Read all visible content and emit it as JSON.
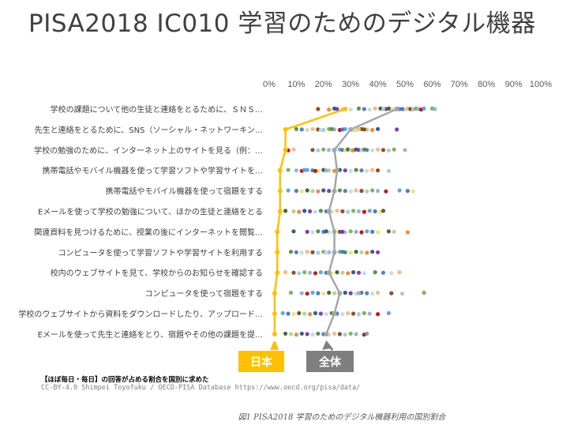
{
  "title": "PISA2018 IC010 学習のためのデジタル機器",
  "footnote": "【ほぼ毎日・毎日】の回答が占める割合を国別に求めた",
  "credit": "CC-BY-4.0 Shimpei Toyofuku / OECD-PISA Database https://www.oecd.org/pisa/data/",
  "caption": "図1 PISA2018 学習のためのデジタル機器利用の国別割合",
  "colors": {
    "japan": "#ffc000",
    "overall": "#a6a6a6",
    "callout_overall": "#7f7f7f"
  },
  "chart_data": {
    "type": "scatter",
    "xlim": [
      0,
      100
    ],
    "x_tick_labels": [
      "0%",
      "10%",
      "20%",
      "30%",
      "40%",
      "50%",
      "60%",
      "70%",
      "80%",
      "90%",
      "100%"
    ],
    "grid": false,
    "categories": [
      "学校の課題について他の生徒と連絡をとるために、ＳＮＳ…",
      "先生と連絡をとるために、SNS（ソーシャル・ネットワーキン…",
      "学校の勉強のために、インターネット上のサイトを見る（例：…",
      "携帯電話やモバイル機器を使って学習ソフトや学習サイトを…",
      "携帯電話やモバイル機器を使って宿題をする",
      "Eメールを使って学校の勉強について、ほかの生徒と連絡をとる",
      "関連資料を見つけるために、授業の後にインターネットを閲覧…",
      "コンピュータを使って学習ソフトや学習サイトを利用する",
      "校内のウェブサイトを見て、学校からのお知らせを確認する",
      "コンピュータを使って宿題をする",
      "学校のウェブサイトから資料をダウンロードしたり、アップロード…",
      "Eメールを使って先生と連絡をとり、宿題やその他の課題を提…"
    ],
    "series": [
      {
        "name": "日本",
        "values": [
          28,
          6,
          6,
          4,
          4,
          4,
          3,
          3,
          3,
          2,
          2,
          2
        ]
      },
      {
        "name": "全体",
        "values": [
          47,
          30,
          24,
          25,
          24,
          22,
          24,
          24,
          22,
          26,
          24,
          21
        ]
      }
    ],
    "countries": [
      [
        41,
        43,
        45,
        47,
        48,
        50,
        51,
        52,
        53,
        54,
        55,
        56,
        57,
        49,
        46,
        44,
        42,
        22,
        24,
        25,
        30,
        33,
        35,
        37,
        39,
        18,
        27,
        60,
        61
      ],
      [
        10,
        12,
        14,
        16,
        18,
        20,
        22,
        24,
        26,
        28,
        30,
        32,
        34,
        36,
        38,
        40,
        47,
        19,
        23,
        27,
        31,
        33,
        35
      ],
      [
        9,
        16,
        18,
        20,
        22,
        24,
        26,
        27,
        28,
        29,
        30,
        31,
        32,
        33,
        34,
        35,
        36,
        38,
        40,
        42,
        44,
        46,
        50,
        7
      ],
      [
        7,
        10,
        12,
        14,
        16,
        18,
        20,
        22,
        24,
        26,
        28,
        30,
        32,
        34,
        36,
        38,
        40,
        44,
        25,
        21,
        17,
        13
      ],
      [
        7,
        10,
        12,
        14,
        16,
        18,
        20,
        22,
        24,
        26,
        28,
        30,
        32,
        34,
        36,
        38,
        40,
        43,
        48,
        51,
        53
      ],
      [
        6,
        9,
        11,
        13,
        15,
        17,
        19,
        21,
        23,
        25,
        27,
        29,
        31,
        33,
        35,
        37,
        39,
        41,
        42
      ],
      [
        9,
        14,
        16,
        18,
        20,
        22,
        24,
        26,
        28,
        30,
        32,
        34,
        36,
        38,
        40,
        44,
        46,
        51,
        21,
        27
      ],
      [
        8,
        10,
        12,
        14,
        16,
        18,
        20,
        22,
        24,
        26,
        28,
        30,
        32,
        34,
        36,
        38,
        40,
        21,
        27
      ],
      [
        6,
        9,
        11,
        13,
        15,
        17,
        19,
        21,
        23,
        25,
        27,
        29,
        31,
        33,
        35,
        39,
        42,
        45,
        48
      ],
      [
        8,
        12,
        14,
        16,
        18,
        20,
        22,
        24,
        26,
        28,
        30,
        32,
        34,
        36,
        38,
        40,
        45,
        49,
        57,
        33
      ],
      [
        5,
        7,
        9,
        11,
        13,
        15,
        17,
        19,
        21,
        23,
        25,
        27,
        29,
        31,
        33,
        35,
        37,
        40,
        44
      ],
      [
        6,
        8,
        10,
        12,
        14,
        16,
        18,
        20,
        22,
        24,
        26,
        28,
        30,
        32,
        35,
        36
      ]
    ],
    "annotations": [
      "日本",
      "全体"
    ]
  }
}
